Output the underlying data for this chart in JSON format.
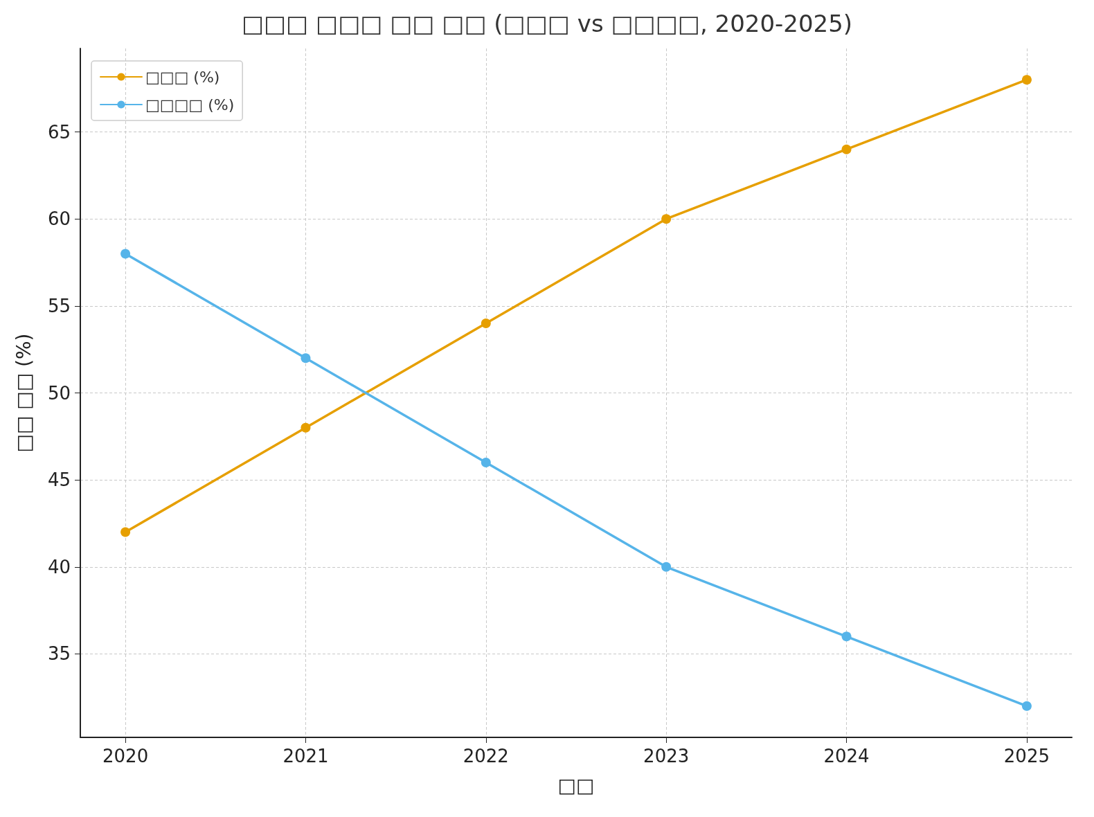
{
  "chart_data": {
    "type": "line",
    "title": "□□□ □□□ □□ □□ (□□□ vs □□□□, 2020-2025)",
    "xlabel": "□□",
    "ylabel": "□□ □□ (%)",
    "x": [
      2020,
      2021,
      2022,
      2023,
      2024,
      2025
    ],
    "series": [
      {
        "name": "□□□ (%)",
        "color": "#e69f00",
        "values": [
          42,
          48,
          54,
          60,
          64,
          68
        ]
      },
      {
        "name": "□□□□ (%)",
        "color": "#56b4e9",
        "values": [
          58,
          52,
          46,
          40,
          36,
          32
        ]
      }
    ],
    "xlim": [
      2019.75,
      2025.25
    ],
    "xticks": [
      2020,
      2021,
      2022,
      2023,
      2024,
      2025
    ],
    "ylim": [
      30.2,
      69.8
    ],
    "yticks": [
      35,
      40,
      45,
      50,
      55,
      60,
      65
    ],
    "grid": true,
    "legend": "top left",
    "marker": "circle",
    "line_style": "solid"
  }
}
